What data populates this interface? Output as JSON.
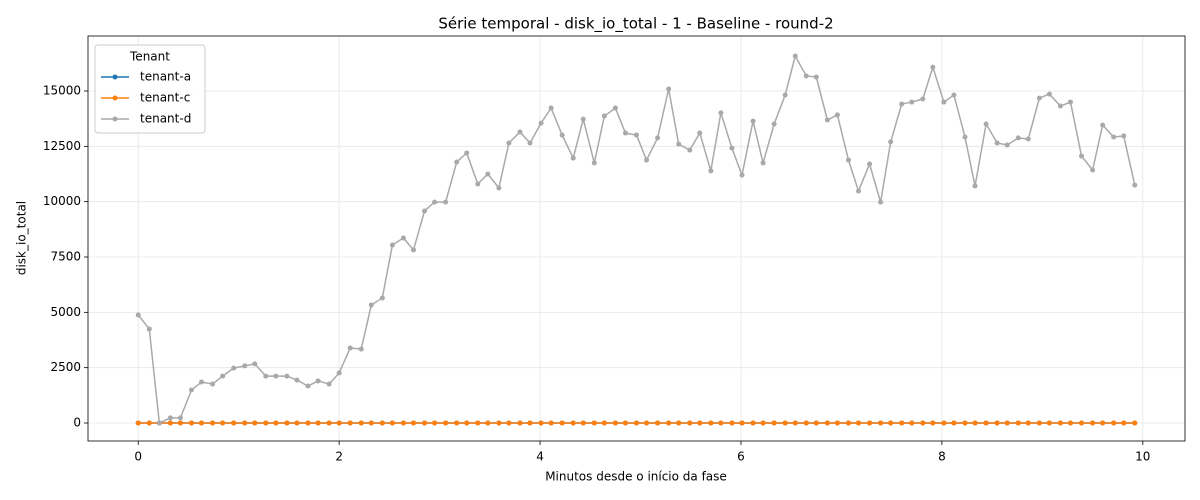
{
  "chart_data": {
    "type": "line",
    "title": "Série temporal - disk_io_total - 1 - Baseline - round-2",
    "xlabel": "Minutos desde o início da fase",
    "ylabel": "disk_io_total",
    "legend_title": "Tenant",
    "legend": "upper left",
    "grid": true,
    "xlim": [
      -0.5,
      10.42
    ],
    "ylim": [
      -813,
      17485
    ],
    "xticks": [
      0,
      2,
      4,
      6,
      8,
      10
    ],
    "yticks": [
      0,
      2500,
      5000,
      7500,
      10000,
      12500,
      15000
    ],
    "x": [
      0,
      0.11,
      0.21,
      0.32,
      0.42,
      0.53,
      0.63,
      0.74,
      0.84,
      0.95,
      1.06,
      1.16,
      1.27,
      1.37,
      1.48,
      1.58,
      1.69,
      1.79,
      1.9,
      2.0,
      2.11,
      2.22,
      2.32,
      2.43,
      2.53,
      2.64,
      2.74,
      2.85,
      2.95,
      3.06,
      3.17,
      3.27,
      3.38,
      3.48,
      3.59,
      3.69,
      3.8,
      3.9,
      4.01,
      4.11,
      4.22,
      4.33,
      4.43,
      4.54,
      4.64,
      4.75,
      4.85,
      4.96,
      5.06,
      5.17,
      5.28,
      5.38,
      5.49,
      5.59,
      5.7,
      5.8,
      5.91,
      6.01,
      6.12,
      6.22,
      6.33,
      6.44,
      6.54,
      6.65,
      6.75,
      6.86,
      6.96,
      7.07,
      7.17,
      7.28,
      7.39,
      7.49,
      7.6,
      7.7,
      7.81,
      7.91,
      8.02,
      8.12,
      8.23,
      8.33,
      8.44,
      8.55,
      8.65,
      8.76,
      8.86,
      8.97,
      9.07,
      9.18,
      9.28,
      9.39,
      9.5,
      9.6,
      9.71,
      9.81,
      9.92
    ],
    "series": [
      {
        "name": "tenant-a",
        "color": "#1f77b4",
        "values": [
          0,
          0,
          0,
          0,
          0,
          0,
          0,
          0,
          0,
          0,
          0,
          0,
          0,
          0,
          0,
          0,
          0,
          0,
          0,
          0,
          0,
          0,
          0,
          0,
          0,
          0,
          0,
          0,
          0,
          0,
          0,
          0,
          0,
          0,
          0,
          0,
          0,
          0,
          0,
          0,
          0,
          0,
          0,
          0,
          0,
          0,
          0,
          0,
          0,
          0,
          0,
          0,
          0,
          0,
          0,
          0,
          0,
          0,
          0,
          0,
          0,
          0,
          0,
          0,
          0,
          0,
          0,
          0,
          0,
          0,
          0,
          0,
          0,
          0,
          0,
          0,
          0,
          0,
          0,
          0,
          0,
          0,
          0,
          0,
          0,
          0,
          0,
          0,
          0,
          0,
          0,
          0,
          0,
          0,
          0
        ]
      },
      {
        "name": "tenant-c",
        "color": "#ff7f0e",
        "values": [
          0,
          0,
          0,
          0,
          0,
          0,
          0,
          0,
          0,
          0,
          0,
          0,
          0,
          0,
          0,
          0,
          0,
          0,
          0,
          0,
          0,
          0,
          0,
          0,
          0,
          0,
          0,
          0,
          0,
          0,
          0,
          0,
          0,
          0,
          0,
          0,
          0,
          0,
          0,
          0,
          0,
          0,
          0,
          0,
          0,
          0,
          0,
          0,
          0,
          0,
          0,
          0,
          0,
          0,
          0,
          0,
          0,
          0,
          0,
          0,
          0,
          0,
          0,
          0,
          0,
          0,
          0,
          0,
          0,
          0,
          0,
          0,
          0,
          0,
          0,
          0,
          0,
          0,
          0,
          0,
          0,
          0,
          0,
          0,
          0,
          0,
          0,
          0,
          0,
          0,
          0,
          0,
          0,
          0,
          0
        ]
      },
      {
        "name": "tenant-d",
        "color": "#a9a9a9",
        "values": [
          4880,
          4250,
          0,
          230,
          230,
          1490,
          1850,
          1760,
          2120,
          2480,
          2580,
          2670,
          2120,
          2120,
          2120,
          1940,
          1670,
          1900,
          1760,
          2260,
          3390,
          3340,
          5330,
          5650,
          8040,
          8360,
          7820,
          9580,
          9980,
          9980,
          11790,
          12200,
          10800,
          11250,
          10620,
          12650,
          13150,
          12650,
          13550,
          14230,
          13010,
          11970,
          13730,
          11750,
          13870,
          14230,
          13100,
          13010,
          11880,
          12880,
          15090,
          12600,
          12330,
          13100,
          11390,
          14010,
          12420,
          11200,
          13640,
          11750,
          13510,
          14820,
          16580,
          15680,
          15630,
          13690,
          13920,
          11880,
          10480,
          11700,
          9980,
          12700,
          14410,
          14500,
          14640,
          16080,
          14500,
          14820,
          12920,
          10710,
          13510,
          12650,
          12560,
          12880,
          12830,
          14680,
          14860,
          14320,
          14500,
          12060,
          11430,
          13460,
          12920,
          12970,
          10750
        ]
      }
    ]
  }
}
